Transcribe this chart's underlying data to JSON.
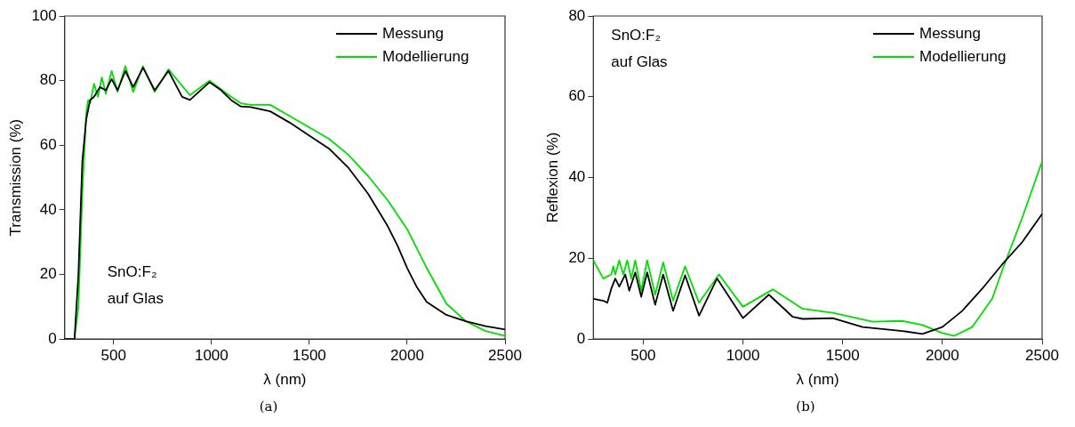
{
  "chart_data": [
    {
      "type": "line",
      "xlabel": "λ (nm)",
      "ylabel": "Transmission (%)",
      "xlim": [
        250,
        2500
      ],
      "xticks": [
        500,
        1000,
        1500,
        2000,
        2500
      ],
      "ylim": [
        0,
        100
      ],
      "yticks": [
        0,
        20,
        40,
        60,
        80,
        100
      ],
      "legend": "top right",
      "grid": false,
      "marker": "none",
      "line_style": "solid",
      "annotations": [
        "SnO:F₂",
        "auf Glas",
        "(a)"
      ],
      "series": [
        {
          "name": "Messung",
          "color": "#000000",
          "x": [
            250,
            300,
            320,
            340,
            360,
            380,
            400,
            430,
            460,
            490,
            520,
            560,
            600,
            650,
            710,
            780,
            850,
            890,
            990,
            1050,
            1100,
            1150,
            1200,
            1300,
            1400,
            1500,
            1600,
            1700,
            1800,
            1900,
            1950,
            2000,
            2050,
            2100,
            2200,
            2300,
            2400,
            2500
          ],
          "values": [
            0,
            0,
            20,
            55,
            68,
            74,
            75,
            78,
            77,
            80.5,
            77,
            83,
            78,
            84,
            77,
            83,
            75,
            74,
            79.5,
            77,
            74,
            72,
            71.8,
            70.5,
            67,
            63,
            59,
            53,
            45,
            35,
            29,
            22,
            16,
            11.5,
            7.5,
            5.5,
            4,
            3
          ]
        },
        {
          "name": "Modellierung",
          "color": "#00e000",
          "x": [
            250,
            300,
            320,
            340,
            360,
            370,
            380,
            400,
            420,
            440,
            460,
            490,
            520,
            560,
            600,
            650,
            710,
            780,
            890,
            990,
            1100,
            1150,
            1200,
            1300,
            1400,
            1500,
            1600,
            1700,
            1800,
            1900,
            2000,
            2100,
            2200,
            2300,
            2400,
            2500
          ],
          "values": [
            0,
            0,
            10,
            45,
            70,
            74,
            73,
            79,
            75,
            81,
            76,
            83,
            76.5,
            84.5,
            76.5,
            84.5,
            76.5,
            83.5,
            75.5,
            80,
            75,
            73,
            72.5,
            72.5,
            69,
            65.5,
            62,
            57,
            50.5,
            43,
            34,
            22,
            11,
            5.5,
            2.5,
            1
          ]
        }
      ]
    },
    {
      "type": "line",
      "xlabel": "λ (nm)",
      "ylabel": "Reflexion (%)",
      "xlim": [
        250,
        2500
      ],
      "xticks": [
        500,
        1000,
        1500,
        2000,
        2500
      ],
      "ylim": [
        0,
        80
      ],
      "yticks": [
        0,
        20,
        40,
        60,
        80
      ],
      "legend": "top right",
      "grid": false,
      "marker": "none",
      "line_style": "solid",
      "annotations": [
        "SnO:F₂",
        "auf Glas",
        "(b)"
      ],
      "series": [
        {
          "name": "Messung",
          "color": "#000000",
          "x": [
            250,
            300,
            320,
            340,
            360,
            380,
            410,
            430,
            460,
            490,
            520,
            560,
            600,
            650,
            710,
            780,
            870,
            1000,
            1130,
            1250,
            1300,
            1450,
            1600,
            1800,
            1900,
            2000,
            2100,
            2200,
            2300,
            2400,
            2500
          ],
          "values": [
            10,
            9.5,
            9,
            12.5,
            15,
            13,
            16,
            12,
            16.5,
            10.5,
            16.5,
            8.5,
            16,
            7,
            15.8,
            5.8,
            15,
            5.2,
            11,
            5.5,
            5,
            5.2,
            3,
            2,
            1.3,
            3,
            7,
            12.5,
            18.5,
            24,
            31
          ]
        },
        {
          "name": "Modellierung",
          "color": "#00e000",
          "x": [
            250,
            300,
            340,
            350,
            360,
            380,
            400,
            420,
            440,
            460,
            490,
            520,
            560,
            600,
            650,
            710,
            780,
            880,
            1000,
            1150,
            1300,
            1450,
            1650,
            1800,
            1900,
            2000,
            2060,
            2150,
            2250,
            2300,
            2400,
            2500
          ],
          "values": [
            19.5,
            15,
            16,
            18,
            16,
            19.5,
            16,
            19.5,
            15,
            19.5,
            12,
            19.5,
            11,
            19,
            9.5,
            18,
            9,
            16,
            8,
            12.3,
            7.5,
            6.5,
            4.3,
            4.5,
            3.5,
            1.5,
            0.8,
            3,
            10,
            17,
            30,
            44
          ]
        }
      ]
    }
  ]
}
